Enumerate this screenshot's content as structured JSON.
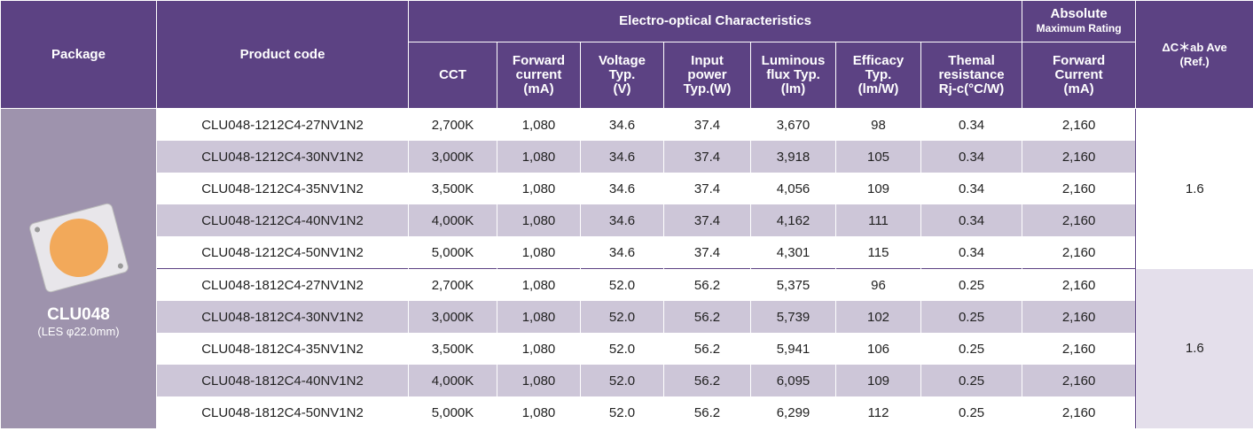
{
  "header": {
    "package": "Package",
    "product_code": "Product code",
    "group": "Electro-optical Characteristics",
    "absolute": "Absolute",
    "absolute_sub": "Maximum Rating",
    "delta": "ΔC＊ab Ave\n(Ref.)",
    "columns": [
      "CCT",
      "Forward\ncurrent\n(mA)",
      "Voltage\nTyp.\n(V)",
      "Input\npower\nTyp.(W)",
      "Luminous\nflux Typ.\n(lm)",
      "Efficacy\nTyp.\n(lm/W)",
      "Themal\nresistance\nRj-c(°C/W)",
      "Forward\nCurrent\n(mA)"
    ]
  },
  "package": {
    "name": "CLU048",
    "les": "(LES φ22.0mm)"
  },
  "groups": [
    {
      "delta": "1.6",
      "rows": [
        [
          "CLU048-1212C4-27NV1N2",
          "2,700K",
          "1,080",
          "34.6",
          "37.4",
          "3,670",
          "98",
          "0.34",
          "2,160"
        ],
        [
          "CLU048-1212C4-30NV1N2",
          "3,000K",
          "1,080",
          "34.6",
          "37.4",
          "3,918",
          "105",
          "0.34",
          "2,160"
        ],
        [
          "CLU048-1212C4-35NV1N2",
          "3,500K",
          "1,080",
          "34.6",
          "37.4",
          "4,056",
          "109",
          "0.34",
          "2,160"
        ],
        [
          "CLU048-1212C4-40NV1N2",
          "4,000K",
          "1,080",
          "34.6",
          "37.4",
          "4,162",
          "111",
          "0.34",
          "2,160"
        ],
        [
          "CLU048-1212C4-50NV1N2",
          "5,000K",
          "1,080",
          "34.6",
          "37.4",
          "4,301",
          "115",
          "0.34",
          "2,160"
        ]
      ]
    },
    {
      "delta": "1.6",
      "rows": [
        [
          "CLU048-1812C4-27NV1N2",
          "2,700K",
          "1,080",
          "52.0",
          "56.2",
          "5,375",
          "96",
          "0.25",
          "2,160"
        ],
        [
          "CLU048-1812C4-30NV1N2",
          "3,000K",
          "1,080",
          "52.0",
          "56.2",
          "5,739",
          "102",
          "0.25",
          "2,160"
        ],
        [
          "CLU048-1812C4-35NV1N2",
          "3,500K",
          "1,080",
          "52.0",
          "56.2",
          "5,941",
          "106",
          "0.25",
          "2,160"
        ],
        [
          "CLU048-1812C4-40NV1N2",
          "4,000K",
          "1,080",
          "52.0",
          "56.2",
          "6,095",
          "109",
          "0.25",
          "2,160"
        ],
        [
          "CLU048-1812C4-50NV1N2",
          "5,000K",
          "1,080",
          "52.0",
          "56.2",
          "6,299",
          "112",
          "0.25",
          "2,160"
        ]
      ]
    }
  ]
}
